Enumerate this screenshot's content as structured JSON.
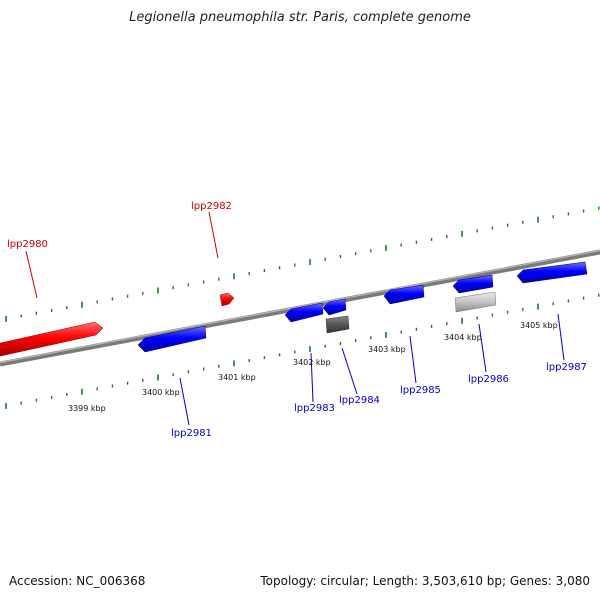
{
  "title": "Legionella pneumophila str. Paris, complete genome",
  "footer": {
    "accession": "Accession: NC_006368",
    "summary": "Topology: circular; Length: 3,503,610 bp; Genes: 3,080"
  },
  "colors": {
    "forward_gene": "#ff0000",
    "reverse_gene": "#0000ff",
    "label_forward": "#cc0000",
    "label_reverse": "#0000cc",
    "tick": "#1a7a1a",
    "backbone": "#808080",
    "gray_feature": "#555555",
    "light_feature": "#bbbbbb"
  },
  "ticks": [
    {
      "label": "3399 kbp"
    },
    {
      "label": "3400 kbp"
    },
    {
      "label": "3401 kbp"
    },
    {
      "label": "3402 kbp"
    },
    {
      "label": "3403 kbp"
    },
    {
      "label": "3404 kbp"
    },
    {
      "label": "3405 kbp"
    }
  ],
  "genes": [
    {
      "name": "lpp2980",
      "strand": "forward"
    },
    {
      "name": "lpp2981",
      "strand": "reverse"
    },
    {
      "name": "lpp2982",
      "strand": "forward"
    },
    {
      "name": "lpp2983",
      "strand": "reverse"
    },
    {
      "name": "lpp2984",
      "strand": "reverse"
    },
    {
      "name": "lpp2985",
      "strand": "reverse"
    },
    {
      "name": "lpp2986",
      "strand": "reverse"
    },
    {
      "name": "lpp2987",
      "strand": "reverse"
    }
  ]
}
